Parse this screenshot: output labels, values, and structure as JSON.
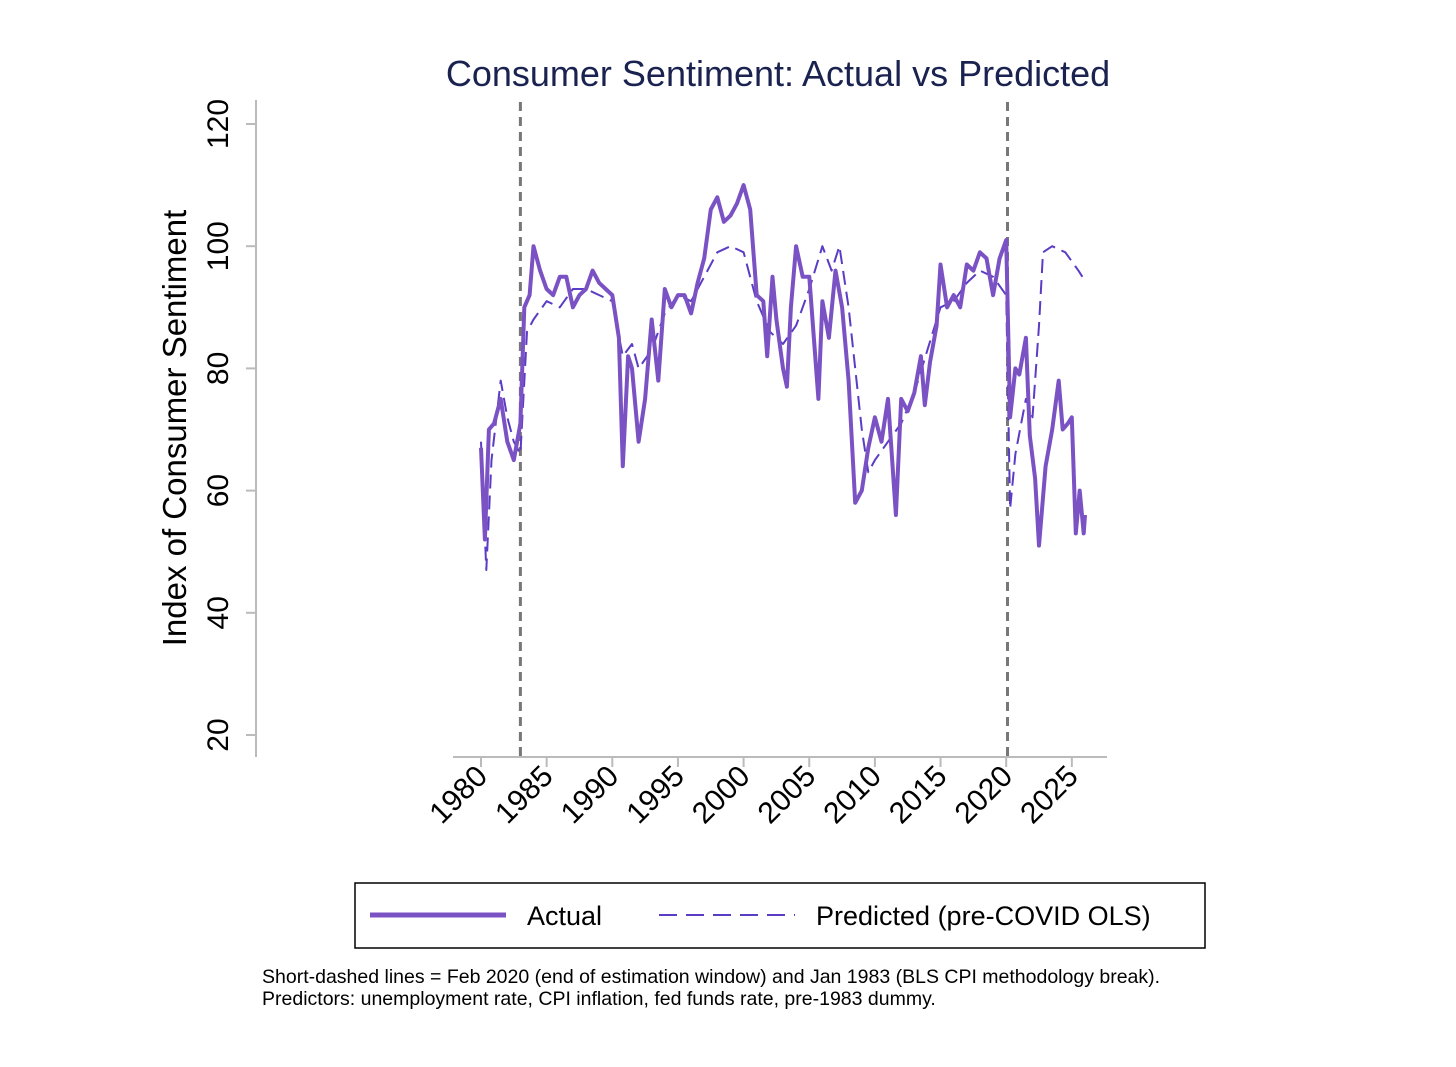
{
  "chart_data": {
    "type": "line",
    "title": "Consumer Sentiment: Actual vs Predicted",
    "xlabel": "",
    "ylabel": "Index of Consumer Sentiment",
    "xlim": [
      1978.0,
      2028.0
    ],
    "ylim": [
      20,
      120
    ],
    "x_ticks": [
      "1980",
      "1985",
      "1990",
      "1995",
      "2000",
      "2005",
      "2010",
      "2015",
      "2020",
      "2025"
    ],
    "y_ticks": [
      "20",
      "40",
      "60",
      "80",
      "100",
      "120"
    ],
    "grid": false,
    "legend_position": "bottom",
    "vertical_reference_lines": [
      {
        "x": 1983.0,
        "style": "short-dash",
        "color": "#777777"
      },
      {
        "x": 2020.1,
        "style": "short-dash",
        "color": "#777777"
      }
    ],
    "series": [
      {
        "name": "Actual",
        "style": "solid",
        "color": "#7B52C4",
        "x": [
          1980.0,
          1980.3,
          1980.6,
          1981.0,
          1981.5,
          1982.0,
          1982.5,
          1983.0,
          1983.3,
          1983.7,
          1984.0,
          1984.5,
          1985.0,
          1985.5,
          1986.0,
          1986.5,
          1987.0,
          1987.5,
          1988.0,
          1988.5,
          1989.0,
          1989.5,
          1990.0,
          1990.5,
          1990.8,
          1991.2,
          1991.5,
          1992.0,
          1992.5,
          1993.0,
          1993.5,
          1994.0,
          1994.5,
          1995.0,
          1995.5,
          1996.0,
          1996.5,
          1997.0,
          1997.5,
          1998.0,
          1998.5,
          1999.0,
          1999.5,
          2000.0,
          2000.5,
          2001.0,
          2001.5,
          2001.8,
          2002.2,
          2002.5,
          2003.0,
          2003.3,
          2003.6,
          2004.0,
          2004.5,
          2005.0,
          2005.7,
          2006.0,
          2006.5,
          2007.0,
          2007.5,
          2008.0,
          2008.5,
          2009.0,
          2009.5,
          2010.0,
          2010.5,
          2011.0,
          2011.6,
          2012.0,
          2012.5,
          2013.0,
          2013.5,
          2013.8,
          2014.2,
          2014.7,
          2015.0,
          2015.5,
          2016.0,
          2016.5,
          2017.0,
          2017.5,
          2018.0,
          2018.5,
          2019.0,
          2019.5,
          2020.0,
          2020.3,
          2020.7,
          2021.0,
          2021.5,
          2021.8,
          2022.2,
          2022.5,
          2023.0,
          2023.5,
          2024.0,
          2024.3,
          2024.7,
          2025.0,
          2025.3,
          2025.6,
          2025.9,
          2026.0
        ],
        "values": [
          67,
          52,
          70,
          71,
          75,
          68,
          65,
          71,
          90,
          92,
          100,
          96,
          93,
          92,
          95,
          95,
          90,
          92,
          93,
          96,
          94,
          93,
          92,
          85,
          64,
          82,
          80,
          68,
          75,
          88,
          78,
          93,
          90,
          92,
          92,
          89,
          94,
          98,
          106,
          108,
          104,
          105,
          107,
          110,
          106,
          92,
          91,
          82,
          95,
          88,
          80,
          77,
          90,
          100,
          95,
          95,
          75,
          91,
          85,
          96,
          90,
          78,
          58,
          60,
          67,
          72,
          68,
          75,
          56,
          75,
          73,
          76,
          82,
          74,
          81,
          87,
          97,
          90,
          92,
          90,
          97,
          96,
          99,
          98,
          92,
          98,
          101,
          72,
          80,
          79,
          85,
          69,
          62,
          51,
          64,
          70,
          78,
          70,
          71,
          72,
          53,
          60,
          53,
          56
        ]
      },
      {
        "name": "Predicted (pre-COVID OLS)",
        "style": "long-dash",
        "color": "#5B3CC4",
        "x": [
          1980.0,
          1980.4,
          1980.8,
          1981.5,
          1982.0,
          1982.5,
          1983.0,
          1983.5,
          1984,
          1985,
          1986,
          1987,
          1988,
          1989,
          1990,
          1990.8,
          1991.5,
          1992,
          1993,
          1994,
          1995,
          1996,
          1997,
          1998,
          1999,
          2000,
          2001,
          2002,
          2003,
          2004,
          2005,
          2006,
          2006.7,
          2007.3,
          2008,
          2008.5,
          2009,
          2009.5,
          2010,
          2011,
          2012,
          2013,
          2014,
          2015,
          2016,
          2017,
          2018,
          2019,
          2020,
          2020.3,
          2020.7,
          2021.5,
          2022.0,
          2022.5,
          2022.8,
          2023.5,
          2024.5,
          2025.5,
          2025.8
        ],
        "values": [
          68,
          47,
          65,
          78,
          72,
          68,
          66,
          86,
          88,
          91,
          90,
          93,
          93,
          92,
          91,
          82,
          84,
          80,
          83,
          89,
          92,
          91,
          95,
          99,
          100,
          99,
          91,
          86,
          84,
          87,
          93,
          100,
          96,
          100,
          90,
          80,
          70,
          63,
          65,
          68,
          71,
          76,
          83,
          90,
          91,
          94,
          96,
          95,
          92,
          57,
          66,
          75,
          72,
          87,
          99,
          100,
          99,
          96,
          95
        ]
      }
    ],
    "legend": [
      "Actual",
      "Predicted (pre-COVID OLS)"
    ],
    "notes": [
      "Short-dashed lines = Feb 2020 (end of estimation window) and Jan 1983 (BLS CPI methodology break).",
      "Predictors: unemployment rate, CPI inflation, fed funds rate, pre-1983 dummy."
    ]
  }
}
